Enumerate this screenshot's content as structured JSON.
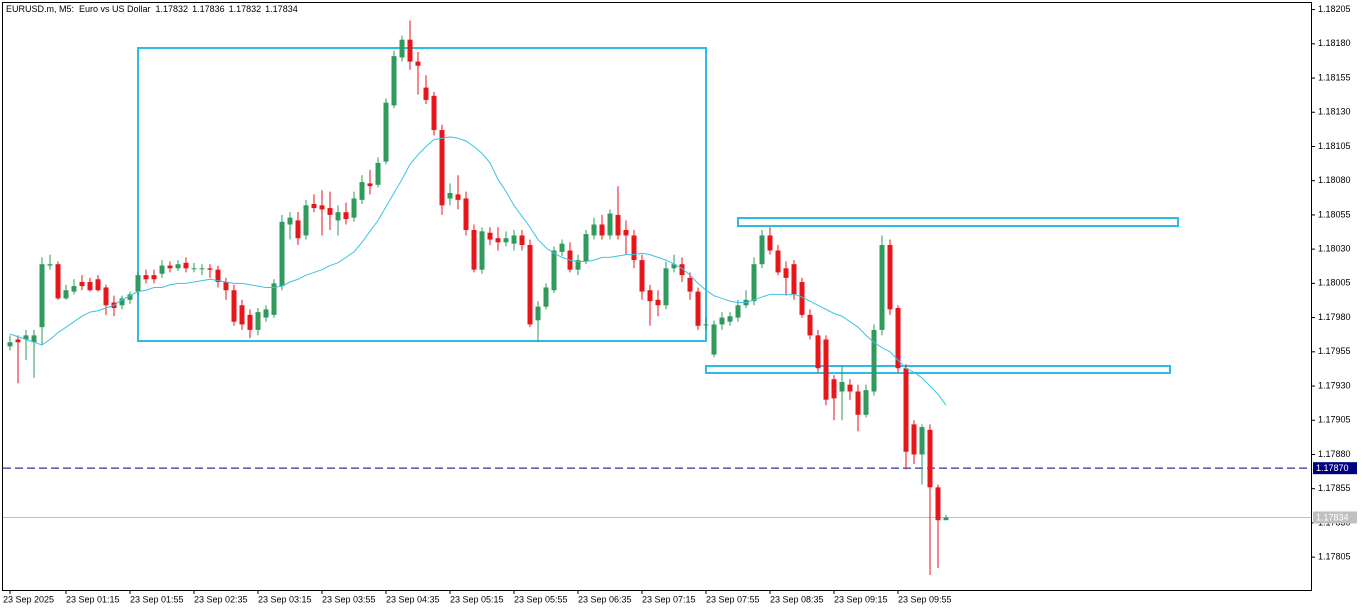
{
  "chart_data": {
    "type": "candlestick",
    "title": "EURUSD.m, M5:  Euro vs US Dollar",
    "up_color": "#2f9a5c",
    "down_color": "#e8161b",
    "categories": [
      "23 Sep 2025",
      null,
      null,
      null,
      null,
      null,
      null,
      "23 Sep 01:15",
      null,
      null,
      null,
      null,
      null,
      null,
      null,
      "23 Sep 01:55",
      null,
      null,
      null,
      null,
      null,
      null,
      null,
      "23 Sep 02:35",
      null,
      null,
      null,
      null,
      null,
      null,
      null,
      "23 Sep 03:15",
      null,
      null,
      null,
      null,
      null,
      null,
      null,
      "23 Sep 03:55",
      null,
      null,
      null,
      null,
      null,
      null,
      null,
      "23 Sep 04:35",
      null,
      null,
      null,
      null,
      null,
      null,
      null,
      "23 Sep 05:15",
      null,
      null,
      null,
      null,
      null,
      null,
      null,
      "23 Sep 05:55",
      null,
      null,
      null,
      null,
      null,
      null,
      null,
      "23 Sep 06:35",
      null,
      null,
      null,
      null,
      null,
      null,
      null,
      "23 Sep 07:15",
      null,
      null,
      null,
      null,
      null,
      null,
      null,
      "23 Sep 07:55",
      null,
      null,
      null,
      null,
      null,
      null,
      null,
      "23 Sep 08:35",
      null,
      null,
      null,
      null,
      null,
      null,
      null,
      "23 Sep 09:15",
      null,
      null,
      null,
      null,
      null,
      null,
      null,
      "23 Sep 09:55",
      null,
      null,
      null,
      null,
      null,
      null
    ],
    "open": [
      1.17959,
      1.17964,
      1.17964,
      1.17962,
      1.17973,
      1.18018,
      1.18019,
      1.17994,
      1.17999,
      1.18006,
      1.18006,
      1.18008,
      1.18002,
      1.17991,
      1.17989,
      1.17993,
      1.17999,
      1.18011,
      1.18011,
      1.18012,
      1.18018,
      1.18016,
      1.1802,
      1.18016,
      1.18016,
      1.18016,
      1.18015,
      1.18006,
      1.18,
      1.17989,
      1.17982,
      1.17971,
      1.1798,
      1.17982,
      1.18003,
      1.18048,
      1.18051,
      1.1804,
      1.18063,
      1.18062,
      1.1806,
      1.18051,
      1.18057,
      1.18053,
      1.18066,
      1.18078,
      1.18077,
      1.18094,
      1.18135,
      1.1817,
      1.18183,
      1.18167,
      1.18148,
      1.18142,
      1.18117,
      1.18067,
      1.1807,
      1.18067,
      1.18044,
      1.18015,
      1.18042,
      1.18038,
      1.18035,
      1.18034,
      1.1804,
      1.18033,
      1.17978,
      1.17988,
      1.18,
      1.18028,
      1.18029,
      1.18015,
      1.18021,
      1.1804,
      1.18048,
      1.1804,
      1.18055,
      1.18044,
      1.1804,
      1.18022,
      1.18,
      1.17993,
      1.17989,
      1.18016,
      1.18019,
      1.18009,
      1.17999,
      1.17975,
      1.17953,
      1.17975,
      1.17977,
      1.1798,
      1.17989,
      1.17992,
      1.18019,
      1.1804,
      1.18029,
      1.18016,
      1.18019,
      1.18006,
      1.17982,
      1.17967,
      1.17964,
      1.17935,
      1.17926,
      1.17931,
      1.17926,
      1.17909,
      1.17926,
      1.17971,
      1.18033,
      1.17987,
      1.17943,
      1.17902,
      1.1788,
      1.17898,
      1.17856,
      1.17832
    ],
    "high": [
      1.17967,
      1.17967,
      1.17971,
      1.17971,
      1.18024,
      1.18026,
      1.18021,
      1.18004,
      1.18008,
      1.18011,
      1.18009,
      1.18011,
      1.18004,
      1.17996,
      1.17996,
      1.17999,
      1.18013,
      1.18015,
      1.18015,
      1.18022,
      1.18021,
      1.18022,
      1.18024,
      1.1802,
      1.18019,
      1.18019,
      1.18018,
      1.18009,
      1.18004,
      1.17993,
      1.17986,
      1.17987,
      1.17989,
      1.18008,
      1.18055,
      1.18057,
      1.18057,
      1.18066,
      1.1807,
      1.18073,
      1.18072,
      1.18062,
      1.18064,
      1.18072,
      1.18084,
      1.18088,
      1.18097,
      1.1814,
      1.18175,
      1.18186,
      1.18197,
      1.18174,
      1.18157,
      1.18145,
      1.18121,
      1.18078,
      1.18084,
      1.18072,
      1.18048,
      1.18046,
      1.18046,
      1.18046,
      1.18043,
      1.18044,
      1.18044,
      1.18037,
      1.17992,
      1.18005,
      1.18032,
      1.18037,
      1.18035,
      1.18026,
      1.18044,
      1.18053,
      1.18055,
      1.18059,
      1.18076,
      1.18051,
      1.18044,
      1.18026,
      1.18004,
      1.18,
      1.18021,
      1.18026,
      1.18024,
      1.18013,
      1.18002,
      1.1798,
      1.17978,
      1.17984,
      1.17984,
      1.17993,
      1.18,
      1.18024,
      1.18044,
      1.18046,
      1.18033,
      1.18021,
      1.18022,
      1.18009,
      1.17986,
      1.17971,
      1.17967,
      1.17938,
      1.17945,
      1.17935,
      1.17931,
      1.17931,
      1.17975,
      1.1804,
      1.18037,
      1.17989,
      1.17946,
      1.17905,
      1.17902,
      1.17902,
      1.17858,
      1.17836
    ],
    "low": [
      1.17956,
      1.17932,
      1.17949,
      1.17936,
      1.1796,
      1.18015,
      1.17993,
      1.17993,
      1.17997,
      1.18,
      1.17999,
      1.17999,
      1.17982,
      1.17981,
      1.17986,
      1.1799,
      1.17996,
      1.18005,
      1.18005,
      1.18009,
      1.18013,
      1.18014,
      1.18013,
      1.18013,
      1.18011,
      1.18009,
      1.18002,
      1.17993,
      1.17974,
      1.17971,
      1.17965,
      1.17967,
      1.17977,
      1.1798,
      1.18,
      1.18037,
      1.18033,
      1.18037,
      1.18057,
      1.1804,
      1.18044,
      1.1804,
      1.18048,
      1.1805,
      1.18063,
      1.1807,
      1.18075,
      1.18092,
      1.18133,
      1.18167,
      1.18161,
      1.18143,
      1.18136,
      1.18113,
      1.18055,
      1.18062,
      1.18059,
      1.1804,
      1.18013,
      1.18012,
      1.18033,
      1.18029,
      1.18032,
      1.18029,
      1.18029,
      1.17973,
      1.17962,
      1.17986,
      1.17998,
      1.18025,
      1.18013,
      1.18011,
      1.18019,
      1.18037,
      1.18037,
      1.18037,
      1.18037,
      1.18026,
      1.18016,
      1.17993,
      1.17974,
      1.17981,
      1.17986,
      1.18013,
      1.18006,
      1.17993,
      1.17971,
      1.17971,
      1.17951,
      1.17971,
      1.17974,
      1.17977,
      1.17987,
      1.17989,
      1.18016,
      1.18026,
      1.18011,
      1.17996,
      1.17993,
      1.1798,
      1.17964,
      1.1794,
      1.17916,
      1.17905,
      1.17905,
      1.1792,
      1.17897,
      1.17907,
      1.17923,
      1.17967,
      1.17982,
      1.1794,
      1.17869,
      1.17873,
      1.17858,
      1.17792,
      1.17797,
      1.17832
    ],
    "close": [
      1.17962,
      1.17962,
      1.17967,
      1.17967,
      1.18019,
      1.18019,
      1.17994,
      1.18,
      1.18003,
      1.18003,
      1.18,
      1.18,
      1.17989,
      1.17987,
      1.17994,
      1.17997,
      1.18011,
      1.18008,
      1.18008,
      1.18018,
      1.18016,
      1.18019,
      1.18016,
      1.18016,
      1.18016,
      1.18015,
      1.18006,
      1.18,
      1.17977,
      1.17975,
      1.17971,
      1.17984,
      1.17986,
      1.18005,
      1.1805,
      1.18053,
      1.18038,
      1.18062,
      1.1806,
      1.18059,
      1.18055,
      1.18057,
      1.18052,
      1.18067,
      1.18079,
      1.18076,
      1.18093,
      1.18137,
      1.18171,
      1.18183,
      1.18167,
      1.18164,
      1.18139,
      1.18117,
      1.18062,
      1.18071,
      1.18066,
      1.18044,
      1.18015,
      1.18043,
      1.18037,
      1.18035,
      1.18038,
      1.1804,
      1.18033,
      1.17975,
      1.17988,
      1.18002,
      1.18029,
      1.18034,
      1.18015,
      1.18022,
      1.18041,
      1.18048,
      1.1804,
      1.18056,
      1.1804,
      1.1804,
      1.18022,
      1.17999,
      1.17992,
      1.17989,
      1.18016,
      1.18019,
      1.18011,
      1.17999,
      1.17974,
      1.17975,
      1.17975,
      1.1798,
      1.17981,
      1.17989,
      1.17993,
      1.18019,
      1.1804,
      1.18029,
      1.18013,
      1.18009,
      1.17997,
      1.17982,
      1.17967,
      1.17943,
      1.1792,
      1.17921,
      1.17933,
      1.17926,
      1.17909,
      1.17927,
      1.17971,
      1.18033,
      1.17986,
      1.17943,
      1.17882,
      1.1788,
      1.179,
      1.17856,
      1.17832,
      1.17834
    ],
    "ma": {
      "color": "#3cc3e4",
      "values": [
        1.17968,
        1.17966,
        1.17964,
        1.17962,
        1.1796,
        1.17964,
        1.17969,
        1.17973,
        1.17977,
        1.17981,
        1.17984,
        1.17985,
        1.17987,
        1.17989,
        1.17993,
        1.17996,
        1.17999,
        1.18,
        1.18002,
        1.18002,
        1.18004,
        1.18005,
        1.18005,
        1.18006,
        1.18007,
        1.18008,
        1.18007,
        1.18006,
        1.18005,
        1.18005,
        1.18004,
        1.18003,
        1.18002,
        1.18002,
        1.18003,
        1.18006,
        1.18008,
        1.18011,
        1.18013,
        1.18015,
        1.18018,
        1.1802,
        1.18024,
        1.18028,
        1.18035,
        1.18043,
        1.18051,
        1.18061,
        1.18071,
        1.18081,
        1.18092,
        1.18099,
        1.18105,
        1.1811,
        1.18111,
        1.18112,
        1.18111,
        1.18109,
        1.18105,
        1.181,
        1.18093,
        1.18081,
        1.18072,
        1.18062,
        1.18054,
        1.18046,
        1.18037,
        1.18031,
        1.18027,
        1.18024,
        1.18022,
        1.18021,
        1.18021,
        1.18022,
        1.18024,
        1.18024,
        1.18025,
        1.18026,
        1.18026,
        1.18027,
        1.18026,
        1.18024,
        1.18022,
        1.18019,
        1.18016,
        1.18011,
        1.18005,
        1.18,
        1.17996,
        1.17994,
        1.17992,
        1.17991,
        1.17991,
        1.17993,
        1.17995,
        1.17997,
        1.17997,
        1.17997,
        1.17997,
        1.17995,
        1.17992,
        1.17989,
        1.17986,
        1.17983,
        1.17981,
        1.17977,
        1.17973,
        1.17967,
        1.17962,
        1.17958,
        1.17955,
        1.17949,
        1.17943,
        1.1794,
        1.17936,
        1.1793,
        1.17924,
        1.17916
      ]
    },
    "ylim": [
      1.17781,
      1.18212
    ],
    "yticks": [
      1.18205,
      {
        "value": 1.1818,
        "label": "1.18180"
      },
      1.18155,
      {
        "value": 1.1813,
        "label": "1.18130"
      },
      1.18105,
      {
        "value": 1.1808,
        "label": "1.18080"
      },
      1.18055,
      {
        "value": 1.1803,
        "label": "1.18030"
      },
      1.18005,
      {
        "value": 1.1798,
        "label": "1.17980"
      },
      1.17955,
      {
        "value": 1.1793,
        "label": "1.17930"
      },
      1.17905,
      {
        "value": 1.1788,
        "label": "1.17880"
      },
      1.17855,
      {
        "value": 1.1783,
        "label": "1.17830"
      },
      1.17805
    ],
    "price_lines": [
      {
        "value": 1.1787,
        "label": "1.17870",
        "color": "#000080",
        "dashed": true
      },
      {
        "value": 1.17834,
        "color": "#c0c0c0",
        "dashed": false
      }
    ]
  }
}
